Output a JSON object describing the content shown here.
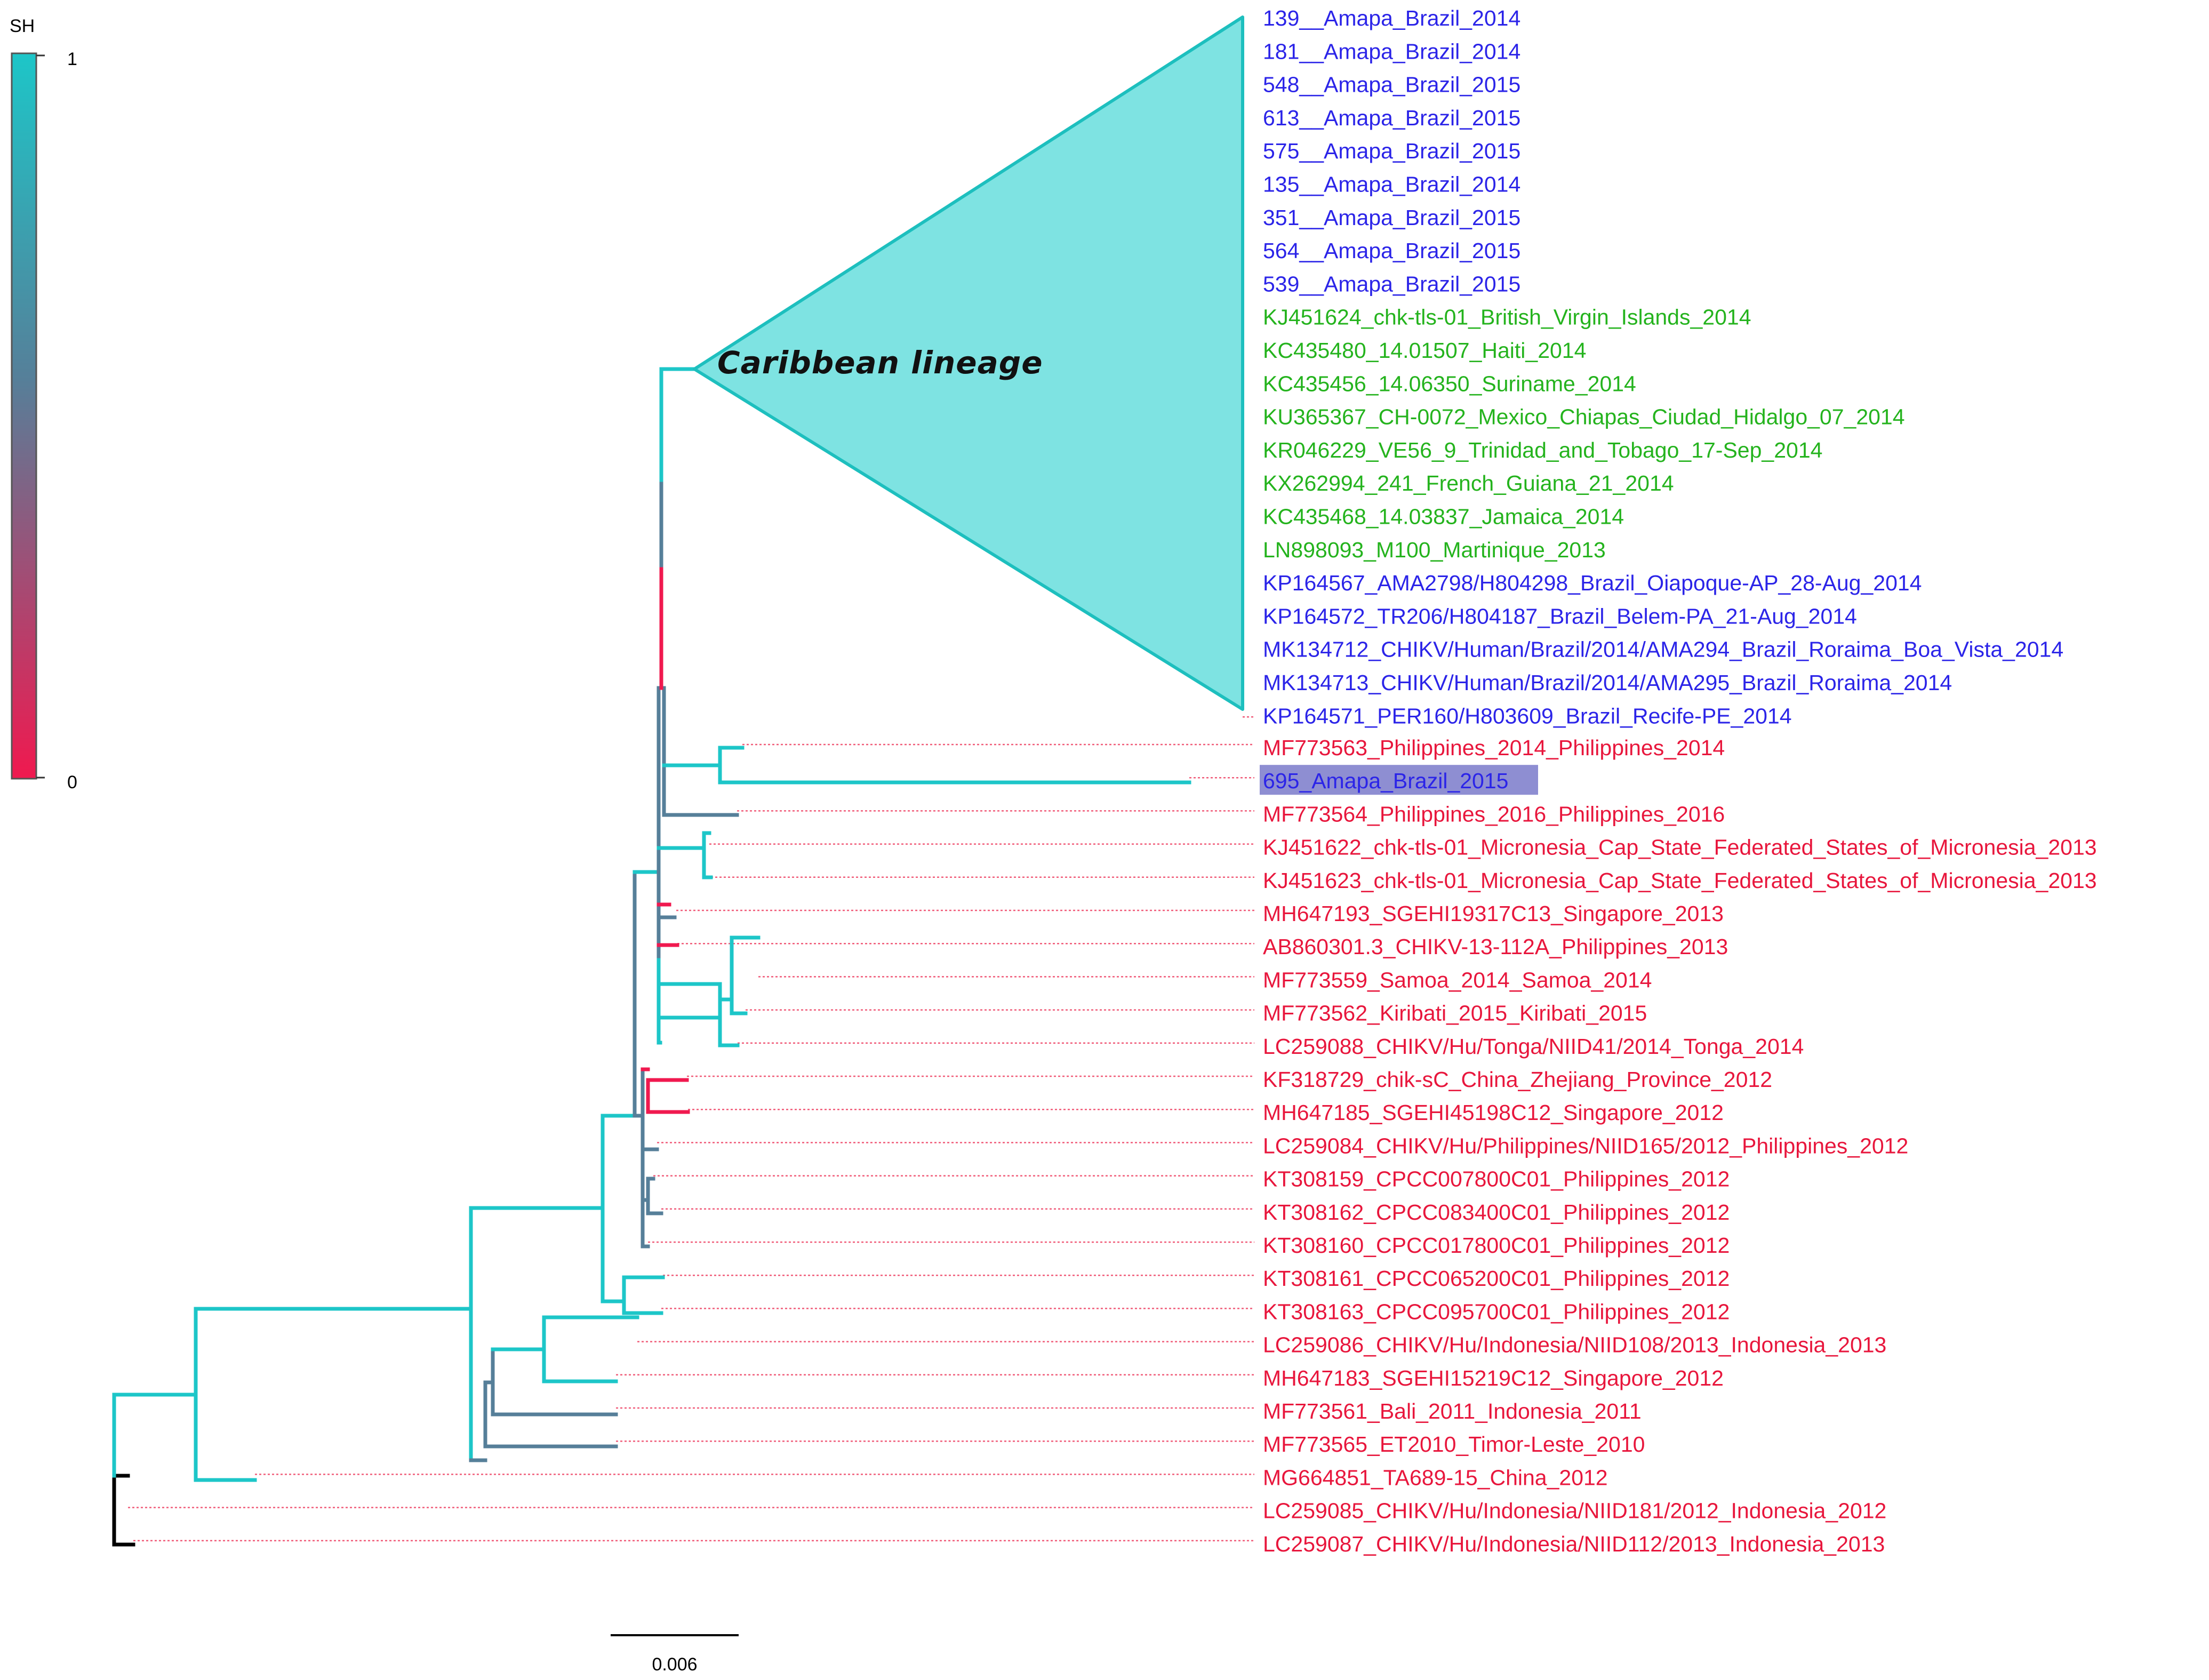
{
  "colors": {
    "sh_high": "#1dc6c8",
    "sh_mid": "#567f99",
    "sh_low": "#f0194f",
    "root": "#000000",
    "label_americas": "#2b24e8",
    "label_caribbean": "#24b31d",
    "label_asia_pacific": "#e8163c",
    "highlight_bg": "#8e8ed2",
    "guide_line": "#f05c79",
    "triangle_fill": "#7ee3e2",
    "triangle_stroke": "#1dbfbe"
  },
  "legend": {
    "title": "SH",
    "max_label": "1",
    "min_label": "0"
  },
  "clade": {
    "label": "Caribbean lineage",
    "tips": [
      {
        "name": "139__Amapa_Brazil_2014",
        "group": "americas"
      },
      {
        "name": "181__Amapa_Brazil_2014",
        "group": "americas"
      },
      {
        "name": "548__Amapa_Brazil_2015",
        "group": "americas"
      },
      {
        "name": "613__Amapa_Brazil_2015",
        "group": "americas"
      },
      {
        "name": "575__Amapa_Brazil_2015",
        "group": "americas"
      },
      {
        "name": "135__Amapa_Brazil_2014",
        "group": "americas"
      },
      {
        "name": "351__Amapa_Brazil_2015",
        "group": "americas"
      },
      {
        "name": "564__Amapa_Brazil_2015",
        "group": "americas"
      },
      {
        "name": "539__Amapa_Brazil_2015",
        "group": "americas"
      },
      {
        "name": "KJ451624_chk-tls-01_British_Virgin_Islands_2014",
        "group": "caribbean"
      },
      {
        "name": "KC435480_14.01507_Haiti_2014",
        "group": "caribbean"
      },
      {
        "name": "KC435456_14.06350_Suriname_2014",
        "group": "caribbean"
      },
      {
        "name": "KU365367_CH-0072_Mexico_Chiapas_Ciudad_Hidalgo_07_2014",
        "group": "caribbean"
      },
      {
        "name": "KR046229_VE56_9_Trinidad_and_Tobago_17-Sep_2014",
        "group": "caribbean"
      },
      {
        "name": "KX262994_241_French_Guiana_21_2014",
        "group": "caribbean"
      },
      {
        "name": "KC435468_14.03837_Jamaica_2014",
        "group": "caribbean"
      },
      {
        "name": "LN898093_M100_Martinique_2013",
        "group": "caribbean"
      },
      {
        "name": "KP164567_AMA2798/H804298_Brazil_Oiapoque-AP_28-Aug_2014",
        "group": "americas"
      },
      {
        "name": "KP164572_TR206/H804187_Brazil_Belem-PA_21-Aug_2014",
        "group": "americas"
      },
      {
        "name": "MK134712_CHIKV/Human/Brazil/2014/AMA294_Brazil_Roraima_Boa_Vista_2014",
        "group": "americas"
      },
      {
        "name": "MK134713_CHIKV/Human/Brazil/2014/AMA295_Brazil_Roraima_2014",
        "group": "americas"
      },
      {
        "name": "KP164571_PER160/H803609_Brazil_Recife-PE_2014",
        "group": "americas"
      }
    ]
  },
  "tips": [
    {
      "name": "MF773563_Philippines_2014_Philippines_2014",
      "group": "asia_pacific"
    },
    {
      "name": "695_Amapa_Brazil_2015",
      "group": "americas",
      "highlight": true
    },
    {
      "name": "MF773564_Philippines_2016_Philippines_2016",
      "group": "asia_pacific"
    },
    {
      "name": "KJ451622_chk-tls-01_Micronesia_Cap_State_Federated_States_of_Micronesia_2013",
      "group": "asia_pacific"
    },
    {
      "name": "KJ451623_chk-tls-01_Micronesia_Cap_State_Federated_States_of_Micronesia_2013",
      "group": "asia_pacific"
    },
    {
      "name": "MH647193_SGEHI19317C13_Singapore_2013",
      "group": "asia_pacific"
    },
    {
      "name": "AB860301.3_CHIKV-13-112A_Philippines_2013",
      "group": "asia_pacific"
    },
    {
      "name": "MF773559_Samoa_2014_Samoa_2014",
      "group": "asia_pacific"
    },
    {
      "name": "MF773562_Kiribati_2015_Kiribati_2015",
      "group": "asia_pacific"
    },
    {
      "name": "LC259088_CHIKV/Hu/Tonga/NIID41/2014_Tonga_2014",
      "group": "asia_pacific"
    },
    {
      "name": "KF318729_chik-sC_China_Zhejiang_Province_2012",
      "group": "asia_pacific"
    },
    {
      "name": "MH647185_SGEHI45198C12_Singapore_2012",
      "group": "asia_pacific"
    },
    {
      "name": "LC259084_CHIKV/Hu/Philippines/NIID165/2012_Philippines_2012",
      "group": "asia_pacific"
    },
    {
      "name": "KT308159_CPCC007800C01_Philippines_2012",
      "group": "asia_pacific"
    },
    {
      "name": "KT308162_CPCC083400C01_Philippines_2012",
      "group": "asia_pacific"
    },
    {
      "name": "KT308160_CPCC017800C01_Philippines_2012",
      "group": "asia_pacific"
    },
    {
      "name": "KT308161_CPCC065200C01_Philippines_2012",
      "group": "asia_pacific"
    },
    {
      "name": "KT308163_CPCC095700C01_Philippines_2012",
      "group": "asia_pacific"
    },
    {
      "name": "LC259086_CHIKV/Hu/Indonesia/NIID108/2013_Indonesia_2013",
      "group": "asia_pacific"
    },
    {
      "name": "MH647183_SGEHI15219C12_Singapore_2012",
      "group": "asia_pacific"
    },
    {
      "name": "MF773561_Bali_2011_Indonesia_2011",
      "group": "asia_pacific"
    },
    {
      "name": "MF773565_ET2010_Timor-Leste_2010",
      "group": "asia_pacific"
    },
    {
      "name": "MG664851_TA689-15_China_2012",
      "group": "asia_pacific"
    },
    {
      "name": "LC259085_CHIKV/Hu/Indonesia/NIID181/2012_Indonesia_2012",
      "group": "asia_pacific"
    },
    {
      "name": "LC259087_CHIKV/Hu/Indonesia/NIID112/2013_Indonesia_2013",
      "group": "asia_pacific"
    }
  ],
  "scale_bar": {
    "label": "0.006",
    "value": 0.006
  }
}
